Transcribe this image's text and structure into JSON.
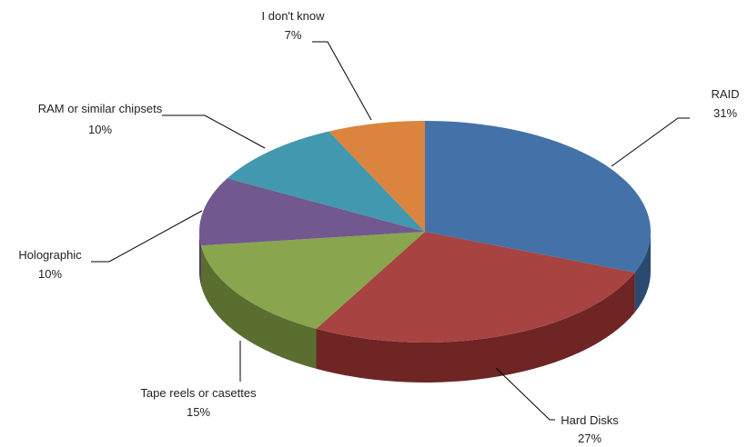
{
  "chart_data": {
    "type": "pie",
    "style": "3d-exploded-none",
    "title": "",
    "slices": [
      {
        "label": "RAID",
        "pct_label": "31%",
        "value": 31,
        "color": "#4472A8",
        "side": "#2B4A70"
      },
      {
        "label": "Hard Disks",
        "pct_label": "27%",
        "value": 27,
        "color": "#A74341",
        "side": "#6E2524"
      },
      {
        "label": "Tape reels or casettes",
        "pct_label": "15%",
        "value": 15,
        "color": "#89A54E",
        "side": "#5A6E30"
      },
      {
        "label": "Holographic",
        "pct_label": "10%",
        "value": 10,
        "color": "#71588F",
        "side": "#4A3860"
      },
      {
        "label": "RAM or similar chipsets",
        "pct_label": "10%",
        "value": 10,
        "color": "#4198AF",
        "side": "#2A6676"
      },
      {
        "label": "I don't know",
        "pct_label": "7%",
        "value": 7,
        "color": "#DB843D",
        "side": "#9A5A26"
      }
    ],
    "legend": "none",
    "data_labels": "outside with leader lines"
  }
}
